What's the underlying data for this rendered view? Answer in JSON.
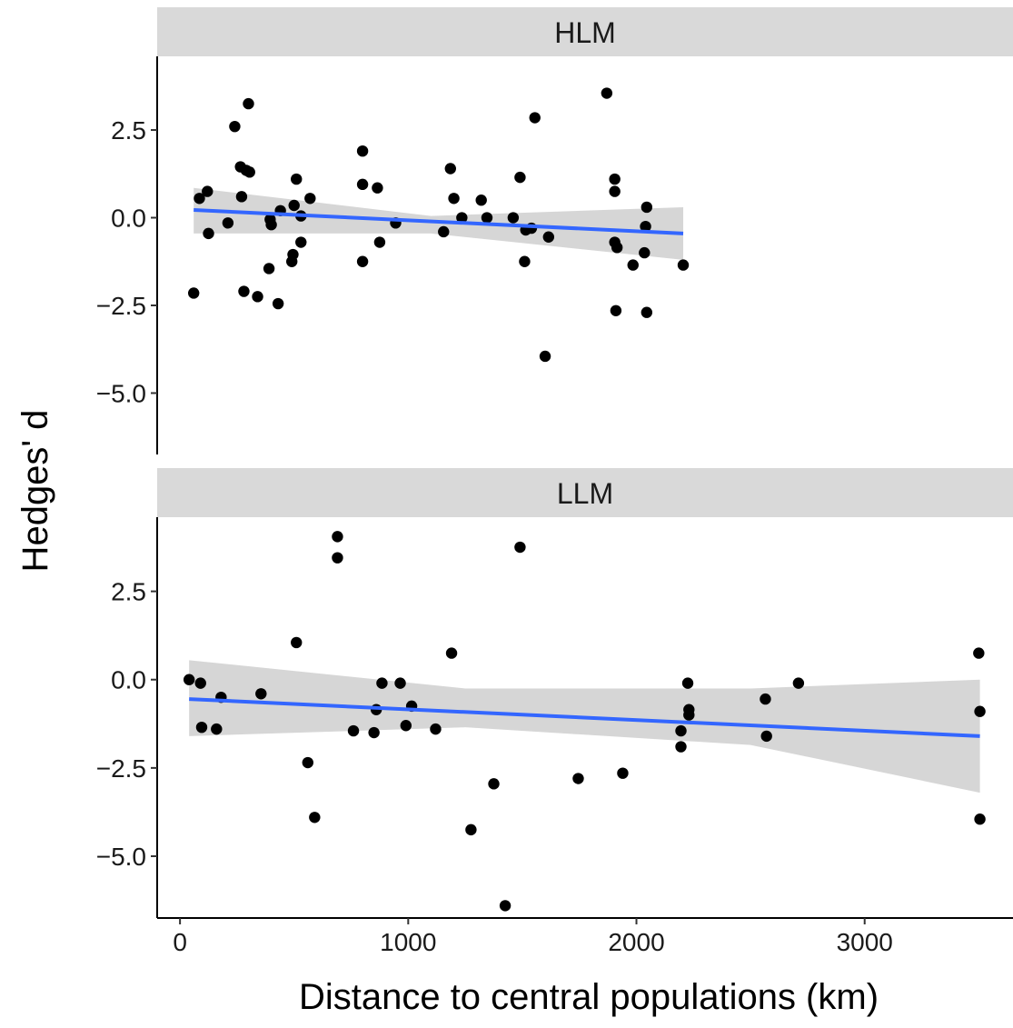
{
  "chart_data": {
    "type": "scatter",
    "xlabel": "Distance to central populations (km)",
    "ylabel": "Hedges' d",
    "xlim": [
      -100,
      3650
    ],
    "ylim": [
      -6.75,
      4.6
    ],
    "x_ticks": [
      0,
      1000,
      2000,
      3000
    ],
    "x_tick_labels": [
      "0",
      "1000",
      "2000",
      "3000"
    ],
    "y_ticks": [
      2.5,
      0.0,
      -2.5,
      -5.0
    ],
    "y_tick_labels": [
      "2.5",
      "0.0",
      "−2.5",
      "−5.0"
    ],
    "grid": false,
    "colors": {
      "points": "#000000",
      "fit_line": "#3366FF",
      "ribbon": "#C8C8C8",
      "strip": "#D9D9D9"
    },
    "panels": [
      {
        "strip_label": "HLM",
        "points": [
          {
            "x": 60,
            "y": -2.15
          },
          {
            "x": 85,
            "y": 0.55
          },
          {
            "x": 120,
            "y": 0.75
          },
          {
            "x": 125,
            "y": -0.45
          },
          {
            "x": 210,
            "y": -0.15
          },
          {
            "x": 240,
            "y": 2.6
          },
          {
            "x": 265,
            "y": 1.45
          },
          {
            "x": 270,
            "y": 0.6
          },
          {
            "x": 280,
            "y": -2.1
          },
          {
            "x": 290,
            "y": 1.35
          },
          {
            "x": 300,
            "y": 3.25
          },
          {
            "x": 305,
            "y": 1.3
          },
          {
            "x": 340,
            "y": -2.25
          },
          {
            "x": 390,
            "y": -1.45
          },
          {
            "x": 395,
            "y": -0.05
          },
          {
            "x": 400,
            "y": -0.2
          },
          {
            "x": 430,
            "y": -2.45
          },
          {
            "x": 440,
            "y": 0.2
          },
          {
            "x": 490,
            "y": -1.25
          },
          {
            "x": 495,
            "y": -1.05
          },
          {
            "x": 500,
            "y": 0.35
          },
          {
            "x": 510,
            "y": 1.1
          },
          {
            "x": 530,
            "y": 0.05
          },
          {
            "x": 530,
            "y": -0.7
          },
          {
            "x": 570,
            "y": 0.55
          },
          {
            "x": 800,
            "y": 1.9
          },
          {
            "x": 800,
            "y": 0.95
          },
          {
            "x": 800,
            "y": -1.25
          },
          {
            "x": 865,
            "y": 0.85
          },
          {
            "x": 875,
            "y": -0.7
          },
          {
            "x": 945,
            "y": -0.15
          },
          {
            "x": 1155,
            "y": -0.4
          },
          {
            "x": 1185,
            "y": 1.4
          },
          {
            "x": 1200,
            "y": 0.55
          },
          {
            "x": 1235,
            "y": 0.0
          },
          {
            "x": 1320,
            "y": 0.5
          },
          {
            "x": 1345,
            "y": 0.0
          },
          {
            "x": 1460,
            "y": 0.0
          },
          {
            "x": 1490,
            "y": 1.15
          },
          {
            "x": 1510,
            "y": -1.25
          },
          {
            "x": 1515,
            "y": -0.35
          },
          {
            "x": 1540,
            "y": -0.3
          },
          {
            "x": 1555,
            "y": 2.85
          },
          {
            "x": 1600,
            "y": -3.95
          },
          {
            "x": 1615,
            "y": -0.55
          },
          {
            "x": 1870,
            "y": 3.55
          },
          {
            "x": 1905,
            "y": 1.1
          },
          {
            "x": 1905,
            "y": 0.75
          },
          {
            "x": 1905,
            "y": -0.7
          },
          {
            "x": 1910,
            "y": -2.65
          },
          {
            "x": 1915,
            "y": -0.85
          },
          {
            "x": 1985,
            "y": -1.35
          },
          {
            "x": 2035,
            "y": -1.0
          },
          {
            "x": 2040,
            "y": -0.25
          },
          {
            "x": 2045,
            "y": 0.3
          },
          {
            "x": 2045,
            "y": -2.7
          },
          {
            "x": 2205,
            "y": -1.35
          }
        ],
        "fit": {
          "x_start": 60,
          "x_end": 2205,
          "y_start": 0.22,
          "y_end": -0.45
        },
        "ribbon": {
          "upper": [
            [
              60,
              0.85
            ],
            [
              1100,
              0.05
            ],
            [
              2205,
              0.3
            ]
          ],
          "lower": [
            [
              60,
              -0.45
            ],
            [
              1100,
              -0.45
            ],
            [
              2205,
              -1.2
            ]
          ]
        }
      },
      {
        "strip_label": "LLM",
        "points": [
          {
            "x": 40,
            "y": 0.0
          },
          {
            "x": 90,
            "y": -0.1
          },
          {
            "x": 95,
            "y": -1.35
          },
          {
            "x": 160,
            "y": -1.4
          },
          {
            "x": 180,
            "y": -0.5
          },
          {
            "x": 355,
            "y": -0.4
          },
          {
            "x": 510,
            "y": 1.05
          },
          {
            "x": 560,
            "y": -2.35
          },
          {
            "x": 590,
            "y": -3.9
          },
          {
            "x": 690,
            "y": 4.05
          },
          {
            "x": 690,
            "y": 3.45
          },
          {
            "x": 760,
            "y": -1.45
          },
          {
            "x": 850,
            "y": -1.5
          },
          {
            "x": 860,
            "y": -0.85
          },
          {
            "x": 885,
            "y": -0.1
          },
          {
            "x": 965,
            "y": -0.1
          },
          {
            "x": 990,
            "y": -1.3
          },
          {
            "x": 1015,
            "y": -0.75
          },
          {
            "x": 1120,
            "y": -1.4
          },
          {
            "x": 1190,
            "y": 0.75
          },
          {
            "x": 1275,
            "y": -4.25
          },
          {
            "x": 1375,
            "y": -2.95
          },
          {
            "x": 1425,
            "y": -6.4
          },
          {
            "x": 1490,
            "y": 3.75
          },
          {
            "x": 1745,
            "y": -2.8
          },
          {
            "x": 1940,
            "y": -2.65
          },
          {
            "x": 2195,
            "y": -1.45
          },
          {
            "x": 2195,
            "y": -1.9
          },
          {
            "x": 2225,
            "y": -0.1
          },
          {
            "x": 2230,
            "y": -0.85
          },
          {
            "x": 2230,
            "y": -1.0
          },
          {
            "x": 2565,
            "y": -0.55
          },
          {
            "x": 2570,
            "y": -1.6
          },
          {
            "x": 2710,
            "y": -0.1
          },
          {
            "x": 3500,
            "y": 0.75
          },
          {
            "x": 3505,
            "y": -0.9
          },
          {
            "x": 3505,
            "y": -3.95
          }
        ],
        "fit": {
          "x_start": 40,
          "x_end": 3505,
          "y_start": -0.55,
          "y_end": -1.6
        },
        "ribbon": {
          "upper": [
            [
              40,
              0.55
            ],
            [
              1250,
              -0.25
            ],
            [
              2500,
              -0.25
            ],
            [
              3505,
              0.0
            ]
          ],
          "lower": [
            [
              40,
              -1.6
            ],
            [
              1250,
              -1.35
            ],
            [
              2500,
              -1.85
            ],
            [
              3505,
              -3.2
            ]
          ]
        }
      }
    ]
  }
}
